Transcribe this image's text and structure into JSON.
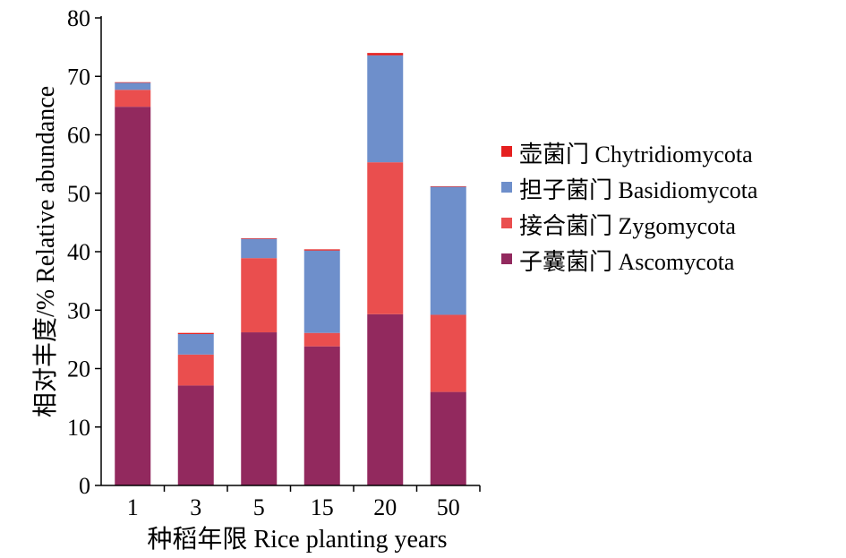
{
  "chart_data": {
    "type": "bar",
    "stacked": true,
    "title": "",
    "xlabel": "种稻年限 Rice planting years",
    "ylabel": "相对丰度/% Relative abundance",
    "ylim": [
      0,
      80
    ],
    "yticks": [
      0,
      10,
      20,
      30,
      40,
      50,
      60,
      70,
      80
    ],
    "categories": [
      "1",
      "3",
      "5",
      "15",
      "20",
      "50"
    ],
    "legend_position": "right",
    "grid": false,
    "series": [
      {
        "name": "子囊菌门 Ascomycota",
        "color": "#92295E",
        "values": [
          64.8,
          17.1,
          26.2,
          23.8,
          29.3,
          16.0
        ]
      },
      {
        "name": "接合菌门 Zygomycota",
        "color": "#EA4E4E",
        "values": [
          2.9,
          5.3,
          12.7,
          2.3,
          26.0,
          13.2
        ]
      },
      {
        "name": "担子菌门 Basidiomycota",
        "color": "#6E8FCB",
        "values": [
          1.2,
          3.5,
          3.3,
          14.1,
          18.3,
          21.9
        ]
      },
      {
        "name": "壶菌门 Chytridiomycota",
        "color": "#E5201F",
        "values": [
          0.1,
          0.2,
          0.1,
          0.2,
          0.4,
          0.1
        ]
      }
    ],
    "legend_order": [
      3,
      2,
      1,
      0
    ]
  }
}
